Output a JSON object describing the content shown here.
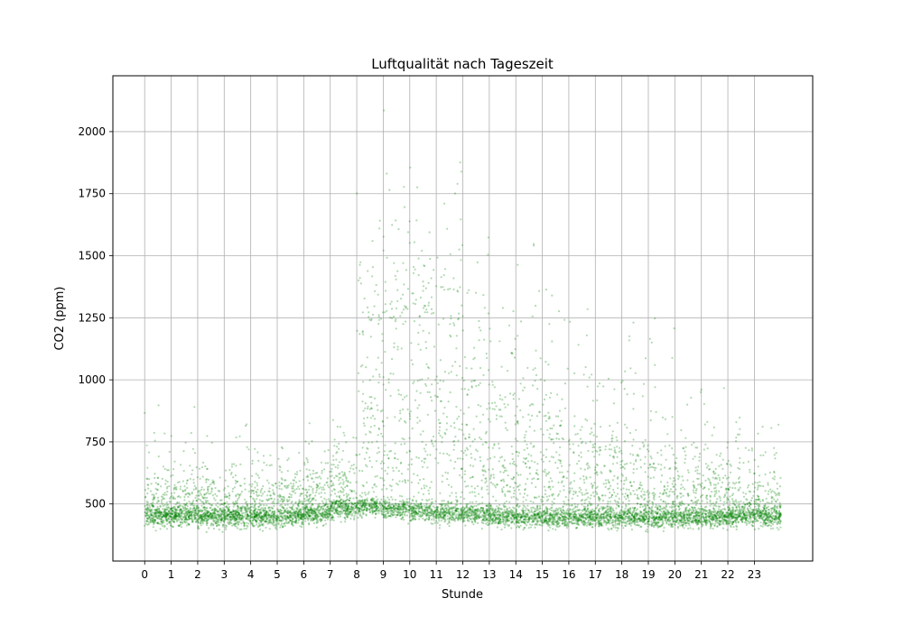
{
  "chart_data": {
    "type": "scatter",
    "title": "Luftqualität nach Tageszeit",
    "xlabel": "Stunde",
    "ylabel": "CO2 (ppm)",
    "xlim": [
      -1.2,
      25.2
    ],
    "ylim": [
      270,
      2225
    ],
    "x_ticks": [
      "0",
      "1",
      "2",
      "3",
      "4",
      "5",
      "6",
      "7",
      "8",
      "9",
      "10",
      "11",
      "12",
      "13",
      "14",
      "15",
      "16",
      "17",
      "18",
      "19",
      "20",
      "21",
      "22",
      "23"
    ],
    "y_ticks": [
      "500",
      "750",
      "1000",
      "1250",
      "1500",
      "1750",
      "2000"
    ],
    "grid": true,
    "legend": "none",
    "point_color": "#008000",
    "point_alpha": 0.3,
    "hourly_profile": {
      "x": [
        0,
        1,
        2,
        3,
        4,
        5,
        6,
        7,
        8,
        9,
        10,
        11,
        12,
        13,
        14,
        15,
        16,
        17,
        18,
        19,
        20,
        21,
        22,
        23
      ],
      "baseline_ppm": [
        450,
        450,
        445,
        445,
        445,
        450,
        460,
        480,
        490,
        480,
        470,
        465,
        460,
        450,
        445,
        445,
        445,
        445,
        445,
        445,
        445,
        445,
        450,
        450
      ],
      "upper_cluster_ppm": [
        560,
        555,
        545,
        545,
        545,
        560,
        600,
        620,
        1150,
        1250,
        1250,
        1200,
        950,
        850,
        800,
        760,
        720,
        700,
        660,
        640,
        620,
        600,
        560,
        560
      ],
      "max_ppm": [
        960,
        940,
        800,
        860,
        880,
        840,
        840,
        870,
        2070,
        2085,
        1950,
        2140,
        1940,
        1430,
        1730,
        1700,
        1400,
        1260,
        1480,
        1420,
        1050,
        1040,
        1030,
        960
      ]
    }
  }
}
